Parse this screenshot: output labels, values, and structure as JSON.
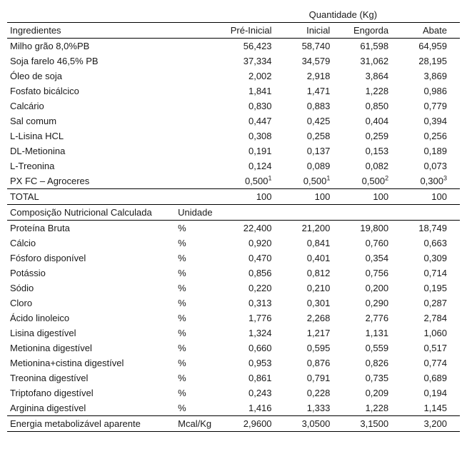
{
  "header": {
    "qty_label": "Quantidade (Kg)",
    "col_ingr": "Ingredientes",
    "phases": [
      "Pré-Inicial",
      "Inicial",
      "Engorda",
      "Abate"
    ]
  },
  "ingredients": [
    {
      "name": "Milho grão 8,0%PB",
      "v": [
        "56,423",
        "58,740",
        "61,598",
        "64,959"
      ]
    },
    {
      "name": "Soja farelo 46,5% PB",
      "v": [
        "37,334",
        "34,579",
        "31,062",
        "28,195"
      ]
    },
    {
      "name": "Óleo de soja",
      "v": [
        "2,002",
        "2,918",
        "3,864",
        "3,869"
      ]
    },
    {
      "name": "Fosfato bicálcico",
      "v": [
        "1,841",
        "1,471",
        "1,228",
        "0,986"
      ]
    },
    {
      "name": "Calcário",
      "v": [
        "0,830",
        "0,883",
        "0,850",
        "0,779"
      ]
    },
    {
      "name": "Sal comum",
      "v": [
        "0,447",
        "0,425",
        "0,404",
        "0,394"
      ]
    },
    {
      "name": "L-Lisina HCL",
      "v": [
        "0,308",
        "0,258",
        "0,259",
        "0,256"
      ]
    },
    {
      "name": "DL-Metionina",
      "v": [
        "0,191",
        "0,137",
        "0,153",
        "0,189"
      ]
    },
    {
      "name": "L-Treonina",
      "v": [
        "0,124",
        "0,089",
        "0,082",
        "0,073"
      ]
    },
    {
      "name": "PX FC – Agroceres",
      "v": [
        "0,500",
        "0,500",
        "0,500",
        "0,300"
      ],
      "sup": [
        "1",
        "1",
        "2",
        "3"
      ]
    }
  ],
  "total": {
    "label": "TOTAL",
    "v": [
      "100",
      "100",
      "100",
      "100"
    ]
  },
  "comp_header": {
    "label": "Composição Nutricional Calculada",
    "unit_label": "Unidade"
  },
  "composition": [
    {
      "name": "Proteína Bruta",
      "u": "%",
      "v": [
        "22,400",
        "21,200",
        "19,800",
        "18,749"
      ]
    },
    {
      "name": "Cálcio",
      "u": "%",
      "v": [
        "0,920",
        "0,841",
        "0,760",
        "0,663"
      ]
    },
    {
      "name": "Fósforo disponível",
      "u": "%",
      "v": [
        "0,470",
        "0,401",
        "0,354",
        "0,309"
      ]
    },
    {
      "name": "Potássio",
      "u": "%",
      "v": [
        "0,856",
        "0,812",
        "0,756",
        "0,714"
      ]
    },
    {
      "name": "Sódio",
      "u": "%",
      "v": [
        "0,220",
        "0,210",
        "0,200",
        "0,195"
      ]
    },
    {
      "name": "Cloro",
      "u": "%",
      "v": [
        "0,313",
        "0,301",
        "0,290",
        "0,287"
      ]
    },
    {
      "name": "Ácido linoleico",
      "u": "%",
      "v": [
        "1,776",
        "2,268",
        "2,776",
        "2,784"
      ]
    },
    {
      "name": "Lisina digestível",
      "u": "%",
      "v": [
        "1,324",
        "1,217",
        "1,131",
        "1,060"
      ]
    },
    {
      "name": "Metionina digestível",
      "u": "%",
      "v": [
        "0,660",
        "0,595",
        "0,559",
        "0,517"
      ]
    },
    {
      "name": "Metionina+cistina digestível",
      "u": "%",
      "v": [
        "0,953",
        "0,876",
        "0,826",
        "0,774"
      ]
    },
    {
      "name": "Treonina digestível",
      "u": "%",
      "v": [
        "0,861",
        "0,791",
        "0,735",
        "0,689"
      ]
    },
    {
      "name": "Triptofano digestível",
      "u": "%",
      "v": [
        "0,243",
        "0,228",
        "0,209",
        "0,194"
      ]
    },
    {
      "name": "Arginina digestível",
      "u": "%",
      "v": [
        "1,416",
        "1,333",
        "1,228",
        "1,145"
      ]
    },
    {
      "name": "Energia metabolizável aparente",
      "u": "Mcal/Kg",
      "v": [
        "2,9600",
        "3,0500",
        "3,1500",
        "3,200"
      ]
    }
  ]
}
